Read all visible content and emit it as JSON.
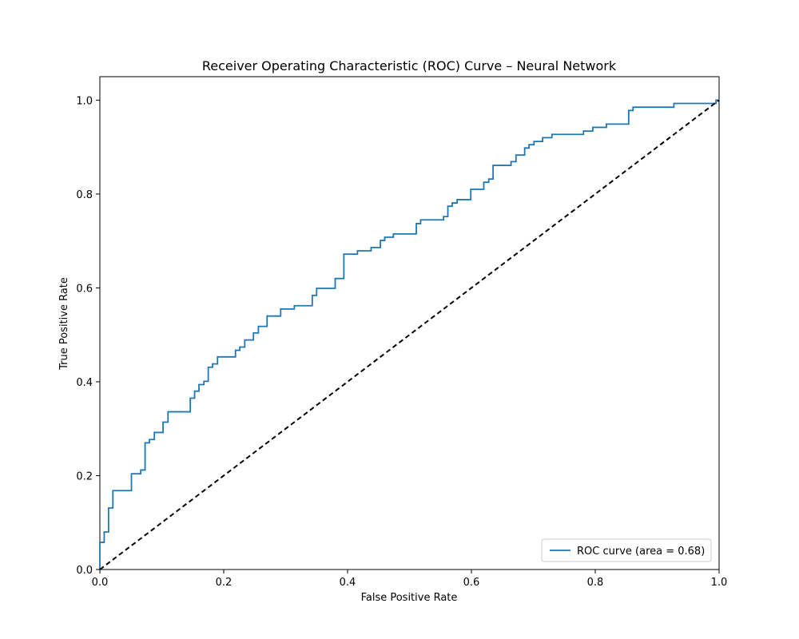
{
  "chart_data": {
    "type": "line",
    "title": "Receiver Operating Characteristic (ROC) Curve – Neural Network",
    "xlabel": "False Positive Rate",
    "ylabel": "True Positive Rate",
    "xlim": [
      0.0,
      1.0
    ],
    "ylim": [
      0.0,
      1.05
    ],
    "xticks": [
      0.0,
      0.2,
      0.4,
      0.6,
      0.8,
      1.0
    ],
    "yticks": [
      0.0,
      0.2,
      0.4,
      0.6,
      0.8,
      1.0
    ],
    "xtick_labels": [
      "0.0",
      "0.2",
      "0.4",
      "0.6",
      "0.8",
      "1.0"
    ],
    "ytick_labels": [
      "0.0",
      "0.2",
      "0.4",
      "0.6",
      "0.8",
      "1.0"
    ],
    "grid": false,
    "legend": {
      "position": "lower-right",
      "entries": [
        "ROC curve (area = 0.68)"
      ]
    },
    "series": [
      {
        "name": "ROC curve (area = 0.68)",
        "color": "#1f77b4",
        "style": "step",
        "x": [
          0.0,
          0.0,
          0.007,
          0.007,
          0.014,
          0.014,
          0.021,
          0.021,
          0.051,
          0.051,
          0.066,
          0.066,
          0.073,
          0.073,
          0.08,
          0.08,
          0.088,
          0.088,
          0.102,
          0.102,
          0.11,
          0.11,
          0.146,
          0.146,
          0.153,
          0.153,
          0.16,
          0.16,
          0.168,
          0.168,
          0.175,
          0.175,
          0.182,
          0.182,
          0.19,
          0.19,
          0.219,
          0.219,
          0.226,
          0.226,
          0.234,
          0.234,
          0.248,
          0.248,
          0.256,
          0.256,
          0.27,
          0.27,
          0.292,
          0.292,
          0.314,
          0.314,
          0.343,
          0.343,
          0.35,
          0.35,
          0.38,
          0.38,
          0.394,
          0.394,
          0.416,
          0.416,
          0.438,
          0.438,
          0.453,
          0.453,
          0.46,
          0.46,
          0.474,
          0.474,
          0.511,
          0.511,
          0.518,
          0.518,
          0.555,
          0.555,
          0.562,
          0.562,
          0.569,
          0.569,
          0.577,
          0.577,
          0.599,
          0.599,
          0.62,
          0.62,
          0.628,
          0.628,
          0.635,
          0.635,
          0.664,
          0.664,
          0.672,
          0.672,
          0.686,
          0.686,
          0.693,
          0.693,
          0.701,
          0.701,
          0.715,
          0.715,
          0.73,
          0.73,
          0.781,
          0.781,
          0.796,
          0.796,
          0.818,
          0.818,
          0.854,
          0.854,
          0.861,
          0.861,
          0.927,
          0.927,
          0.995,
          0.995,
          1.0
        ],
        "y": [
          0.0,
          0.058,
          0.058,
          0.08,
          0.08,
          0.131,
          0.131,
          0.168,
          0.168,
          0.204,
          0.204,
          0.212,
          0.212,
          0.27,
          0.27,
          0.277,
          0.277,
          0.292,
          0.292,
          0.314,
          0.314,
          0.336,
          0.336,
          0.365,
          0.365,
          0.38,
          0.38,
          0.394,
          0.394,
          0.401,
          0.401,
          0.431,
          0.431,
          0.438,
          0.438,
          0.453,
          0.453,
          0.467,
          0.467,
          0.474,
          0.474,
          0.489,
          0.489,
          0.504,
          0.504,
          0.518,
          0.518,
          0.54,
          0.54,
          0.555,
          0.555,
          0.562,
          0.562,
          0.584,
          0.584,
          0.599,
          0.599,
          0.62,
          0.62,
          0.672,
          0.672,
          0.679,
          0.679,
          0.686,
          0.686,
          0.701,
          0.701,
          0.708,
          0.708,
          0.715,
          0.715,
          0.737,
          0.737,
          0.745,
          0.745,
          0.752,
          0.752,
          0.774,
          0.774,
          0.781,
          0.781,
          0.788,
          0.788,
          0.81,
          0.81,
          0.825,
          0.825,
          0.832,
          0.832,
          0.861,
          0.861,
          0.869,
          0.869,
          0.883,
          0.883,
          0.898,
          0.898,
          0.905,
          0.905,
          0.912,
          0.912,
          0.92,
          0.92,
          0.927,
          0.927,
          0.934,
          0.934,
          0.942,
          0.942,
          0.949,
          0.949,
          0.978,
          0.978,
          0.985,
          0.985,
          0.993,
          0.993,
          1.0,
          1.0
        ]
      },
      {
        "name": "",
        "color": "#000000",
        "style": "dashed",
        "x": [
          0.0,
          1.0
        ],
        "y": [
          0.0,
          1.0
        ]
      }
    ]
  }
}
